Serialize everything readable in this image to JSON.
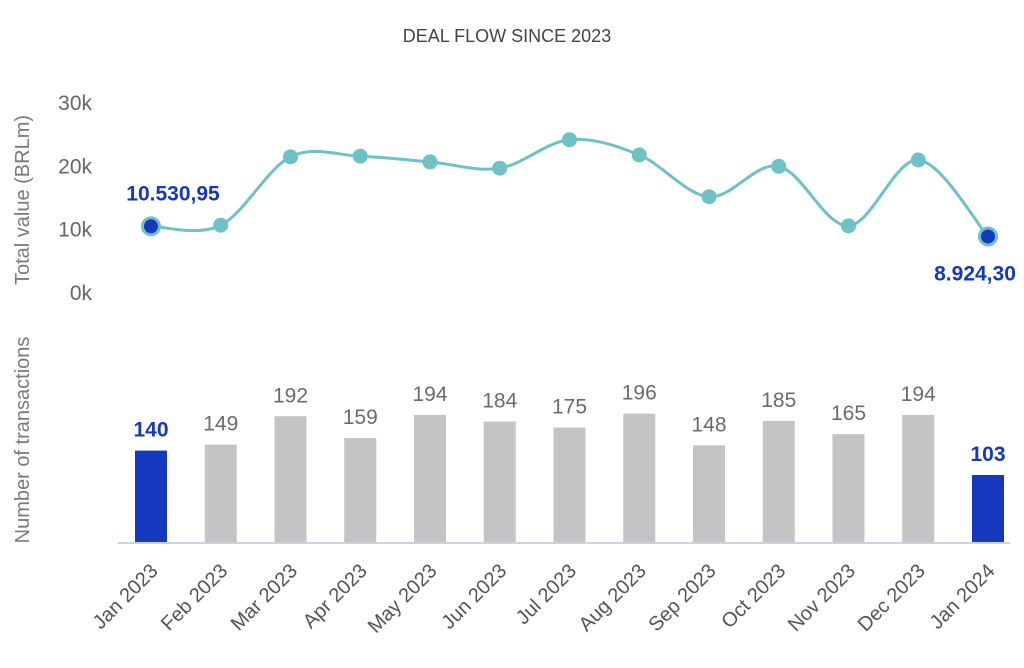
{
  "chart_data": {
    "type": "line+bar",
    "title": "DEAL FLOW SINCE 2023",
    "categories": [
      "Jan 2023",
      "Feb 2023",
      "Mar 2023",
      "Apr 2023",
      "May 2023",
      "Jun 2023",
      "Jul 2023",
      "Aug 2023",
      "Sep 2023",
      "Oct 2023",
      "Nov 2023",
      "Dec 2023",
      "Jan 2024"
    ],
    "line": {
      "ylabel": "Total value (BRLm)",
      "yticks": [
        "0k",
        "10k",
        "20k",
        "30k"
      ],
      "ylim": [
        0,
        30000
      ],
      "values": [
        10530.95,
        10700,
        21500,
        21600,
        20700,
        19700,
        24200,
        21800,
        15200,
        20000,
        10600,
        21000,
        8924.3
      ],
      "highlight_labels": [
        {
          "index": 0,
          "text": "10.530,95",
          "position": "above"
        },
        {
          "index": 12,
          "text": "8.924,30",
          "position": "below"
        }
      ],
      "color": "#6ec1c7",
      "highlight_color": "#1538be"
    },
    "bars": {
      "ylabel": "Number of transactions",
      "values": [
        140,
        149,
        192,
        159,
        194,
        184,
        175,
        196,
        148,
        185,
        165,
        194,
        103
      ],
      "labels": [
        "140",
        "149",
        "192",
        "159",
        "194",
        "184",
        "175",
        "196",
        "148",
        "185",
        "165",
        "194",
        "103"
      ],
      "highlight_indices": [
        0,
        12
      ],
      "color": "#c4c4c4",
      "highlight_color": "#1538be"
    },
    "grid": false,
    "legend": "none"
  }
}
